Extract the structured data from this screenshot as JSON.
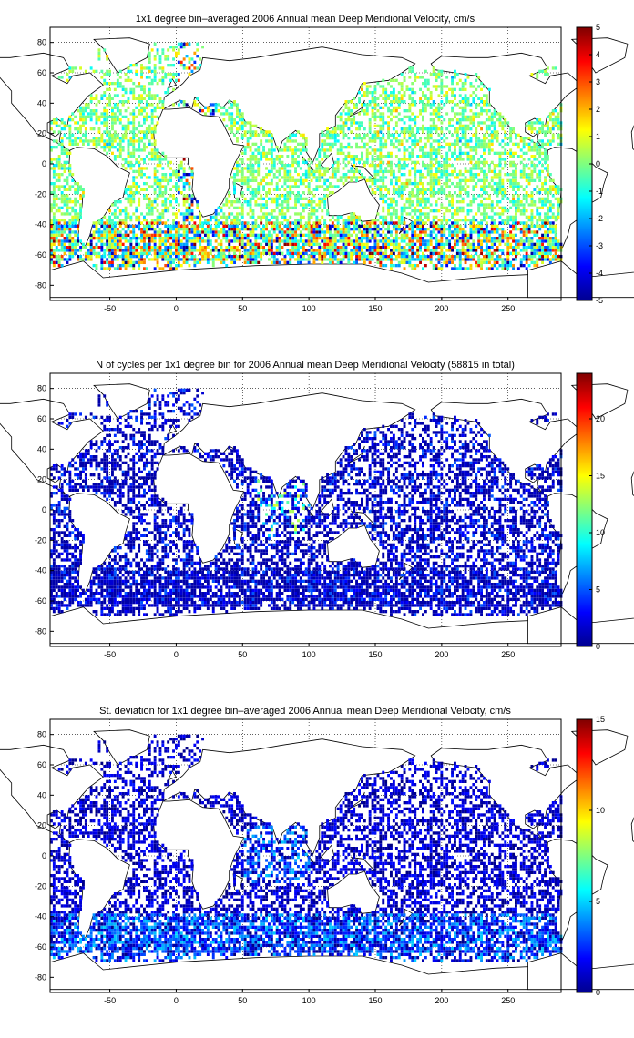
{
  "colormap": "jet",
  "chart_data": [
    {
      "type": "heatmap",
      "title": "1x1 degree bin–averaged 2006 Annual mean Deep Meridional Velocity, cm/s",
      "xlim": [
        -95,
        290
      ],
      "ylim": [
        -90,
        90
      ],
      "x_ticks": [
        "-50",
        "0",
        "50",
        "100",
        "150",
        "200",
        "250"
      ],
      "y_ticks": [
        "80",
        "60",
        "40",
        "20",
        "0",
        "-20",
        "-40",
        "-60",
        "-80"
      ],
      "grid": true,
      "colorbar": {
        "min": -5,
        "max": 5,
        "ticks": [
          "5",
          "4",
          "3",
          "2",
          "1",
          "0",
          "-1",
          "-2",
          "-3",
          "-4",
          "-5"
        ]
      },
      "field": "signed"
    },
    {
      "type": "heatmap",
      "title": "N of cycles per 1x1 degree bin for 2006 Annual mean Deep Meridional Velocity (58815 in total)",
      "xlim": [
        -95,
        290
      ],
      "ylim": [
        -90,
        90
      ],
      "x_ticks": [
        "-50",
        "0",
        "50",
        "100",
        "150",
        "200",
        "250"
      ],
      "y_ticks": [
        "80",
        "60",
        "40",
        "20",
        "0",
        "-20",
        "-40",
        "-60",
        "-80"
      ],
      "grid": true,
      "colorbar": {
        "min": 0,
        "max": 24,
        "ticks": [
          "20",
          "15",
          "10",
          "5",
          "0"
        ]
      },
      "field": "count"
    },
    {
      "type": "heatmap",
      "title": "St. deviation for 1x1 degree bin–averaged 2006 Annual mean Deep Meridional Velocity, cm/s",
      "xlim": [
        -95,
        290
      ],
      "ylim": [
        -90,
        90
      ],
      "x_ticks": [
        "-50",
        "0",
        "50",
        "100",
        "150",
        "200",
        "250"
      ],
      "y_ticks": [
        "80",
        "60",
        "40",
        "20",
        "0",
        "-20",
        "-40",
        "-60",
        "-80"
      ],
      "grid": true,
      "colorbar": {
        "min": 0,
        "max": 15,
        "ticks": [
          "15",
          "10",
          "5",
          "0"
        ]
      },
      "field": "std"
    }
  ]
}
